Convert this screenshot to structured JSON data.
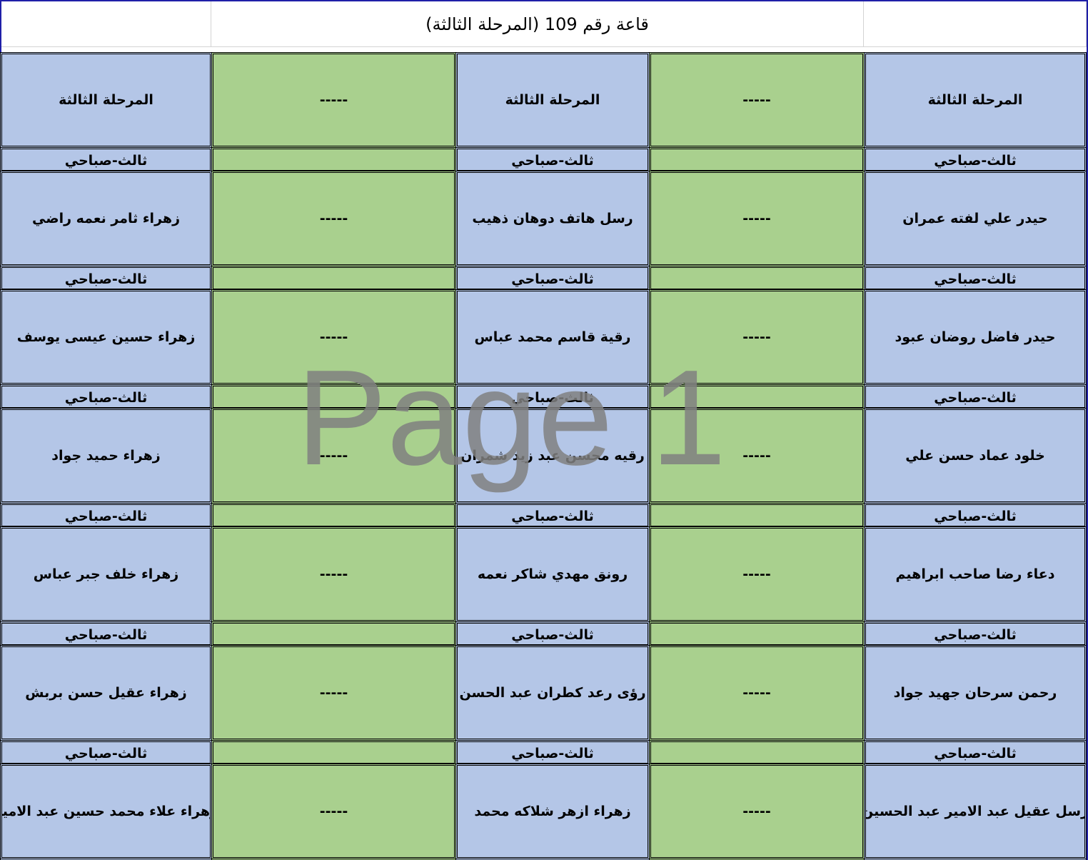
{
  "title": "قاعة رقم 109 (المرحلة الثالثة)",
  "colors": {
    "name_cell": "#b4c6e7",
    "empty_cell": "#a9d08e",
    "frame": "#1f1fa8"
  },
  "empty_mark": "-----",
  "shift_label": "ثالث-صباحي",
  "rows": [
    [
      "المرحلة الثالثة",
      "المرحلة الثالثة",
      "المرحلة الثالثة"
    ],
    [
      "حيدر علي لفته عمران",
      "رسل هاتف دوهان ذهيب",
      "زهراء ثامر نعمه راضي"
    ],
    [
      "حيدر فاضل روضان عبود",
      "رقية قاسم محمد عباس",
      "زهراء حسين عيسى يوسف"
    ],
    [
      "خلود عماد حسن علي",
      "رقيه محسن عبد زيد شمران",
      "زهراء حميد جواد"
    ],
    [
      "دعاء رضا صاحب ابراهيم",
      "رونق مهدي شاكر نعمه",
      "زهراء خلف جبر عباس"
    ],
    [
      "رحمن سرحان جهيد جواد",
      "رؤى رعد كطران عبد الحسن",
      "زهراء عقيل حسن بربش"
    ],
    [
      "رسل عقيل عبد الامير عبد الحسين",
      "زهراء ازهر شلاكه محمد",
      "زهراء علاء محمد حسين عبد الامير"
    ]
  ],
  "watermark": "Page 1"
}
